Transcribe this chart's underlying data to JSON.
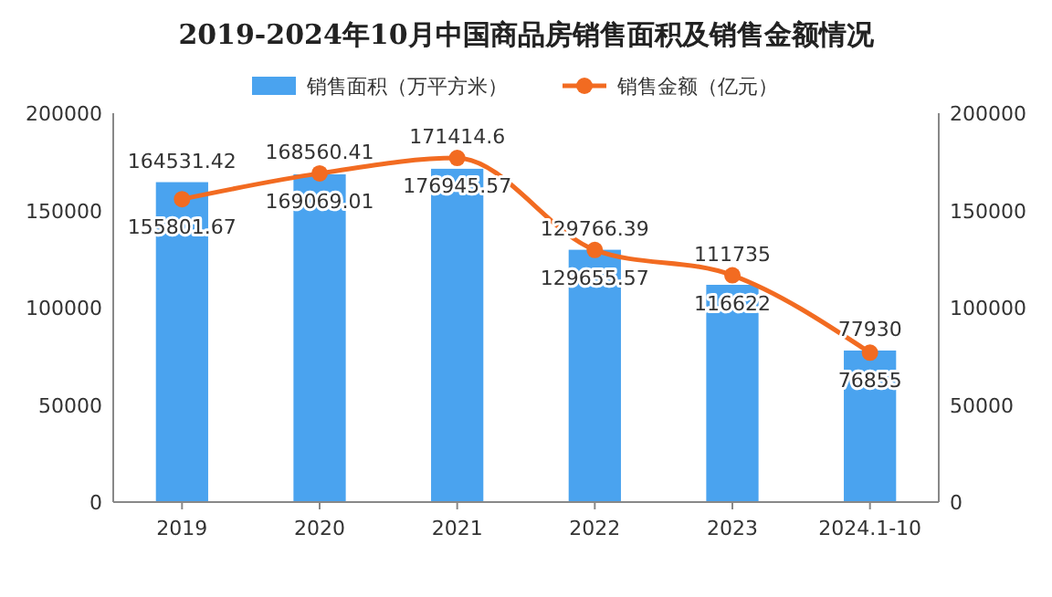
{
  "chart_data": {
    "type": "bar",
    "title": "2019-2024年10月中国商品房销售面积及销售金额情况",
    "categories": [
      "2019",
      "2020",
      "2021",
      "2022",
      "2023",
      "2024.1-10"
    ],
    "series": [
      {
        "name": "销售面积（万平方米）",
        "type": "bar",
        "color": "#4aa3ef",
        "values": [
          164531.42,
          168560.41,
          171414.6,
          129766.39,
          111735,
          77930
        ]
      },
      {
        "name": "销售金额（亿元）",
        "type": "line",
        "axis": "y2",
        "color": "#f26b21",
        "values": [
          155801.67,
          169069.01,
          176945.57,
          129655.57,
          116622,
          76855
        ]
      }
    ],
    "ylim": [
      0,
      200000
    ],
    "yticks": [
      0,
      50000,
      100000,
      150000,
      200000
    ],
    "y2lim": [
      0,
      200000
    ],
    "y2ticks": [
      0,
      50000,
      100000,
      150000,
      200000
    ],
    "data_labels": true,
    "legend": "top",
    "marker": "circle",
    "grid": false
  }
}
